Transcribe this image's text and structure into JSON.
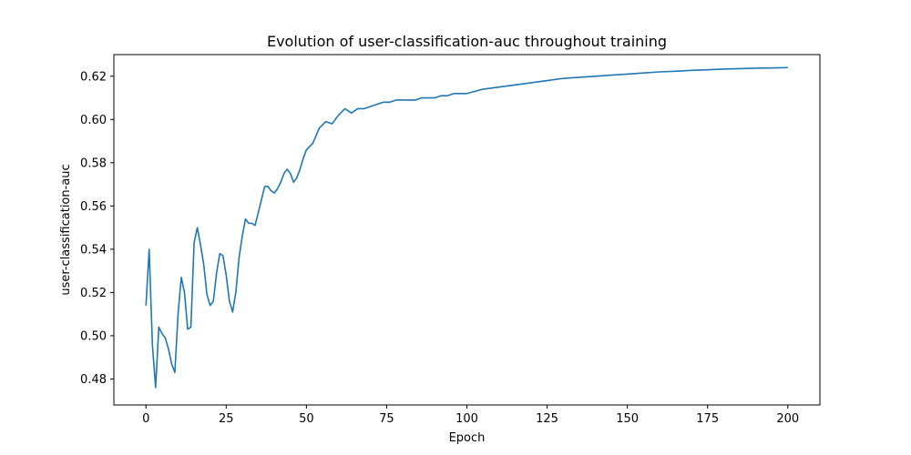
{
  "chart_data": {
    "type": "line",
    "title": "Evolution of user-classification-auc throughout training",
    "xlabel": "Epoch",
    "ylabel": "user-classification-auc",
    "xlim": [
      -10,
      210
    ],
    "ylim": [
      0.468,
      0.63
    ],
    "x_ticks": [
      0,
      25,
      50,
      75,
      100,
      125,
      150,
      175,
      200
    ],
    "y_ticks": [
      0.48,
      0.5,
      0.52,
      0.54,
      0.56,
      0.58,
      0.6,
      0.62
    ],
    "grid": false,
    "legend": "none",
    "series": [
      {
        "color": "#1f77b4",
        "x": [
          0,
          1,
          2,
          3,
          4,
          5,
          6,
          7,
          8,
          9,
          10,
          11,
          12,
          13,
          14,
          15,
          16,
          17,
          18,
          19,
          20,
          21,
          22,
          23,
          24,
          25,
          26,
          27,
          28,
          29,
          30,
          31,
          32,
          33,
          34,
          35,
          36,
          37,
          38,
          39,
          40,
          41,
          42,
          43,
          44,
          45,
          46,
          47,
          48,
          49,
          50,
          52,
          54,
          56,
          58,
          60,
          62,
          64,
          66,
          68,
          70,
          72,
          74,
          76,
          78,
          80,
          82,
          84,
          86,
          88,
          90,
          92,
          94,
          96,
          98,
          100,
          105,
          110,
          115,
          120,
          125,
          130,
          135,
          140,
          145,
          150,
          155,
          160,
          165,
          170,
          175,
          180,
          185,
          190,
          195,
          200
        ],
        "values": [
          0.514,
          0.54,
          0.496,
          0.476,
          0.504,
          0.501,
          0.499,
          0.494,
          0.487,
          0.483,
          0.51,
          0.527,
          0.52,
          0.503,
          0.504,
          0.543,
          0.55,
          0.542,
          0.533,
          0.519,
          0.514,
          0.516,
          0.529,
          0.538,
          0.537,
          0.528,
          0.516,
          0.511,
          0.52,
          0.536,
          0.546,
          0.554,
          0.552,
          0.552,
          0.551,
          0.557,
          0.563,
          0.569,
          0.569,
          0.567,
          0.566,
          0.568,
          0.571,
          0.575,
          0.577,
          0.575,
          0.571,
          0.573,
          0.577,
          0.582,
          0.586,
          0.589,
          0.596,
          0.599,
          0.598,
          0.602,
          0.605,
          0.603,
          0.605,
          0.605,
          0.606,
          0.607,
          0.608,
          0.608,
          0.609,
          0.609,
          0.609,
          0.609,
          0.61,
          0.61,
          0.61,
          0.611,
          0.611,
          0.612,
          0.612,
          0.612,
          0.614,
          0.615,
          0.616,
          0.617,
          0.618,
          0.619,
          0.6195,
          0.62,
          0.6205,
          0.621,
          0.6215,
          0.622,
          0.6223,
          0.6227,
          0.623,
          0.6233,
          0.6235,
          0.6237,
          0.6238,
          0.624
        ]
      }
    ]
  }
}
